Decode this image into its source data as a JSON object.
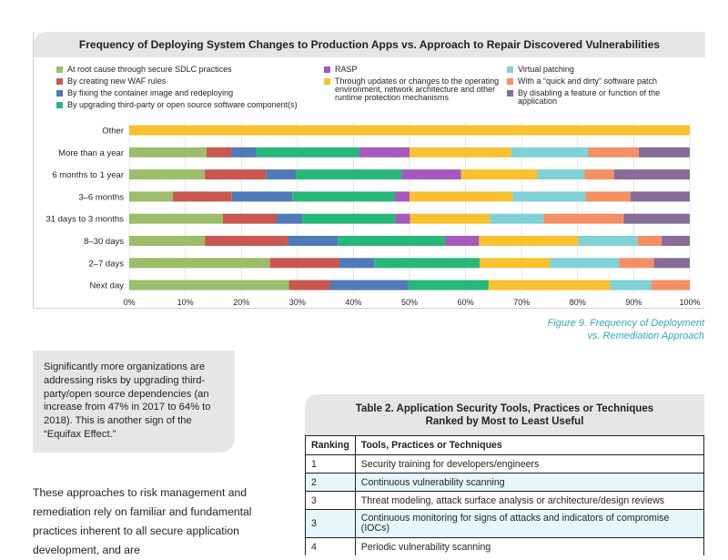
{
  "chart_data": {
    "type": "bar",
    "orientation": "horizontal",
    "stacked": true,
    "title": "Frequency of Deploying System Changes to Production Apps vs. Approach to Repair Discovered Vulnerabilities",
    "categories": [
      "Other",
      "More than a year",
      "6 months to 1 year",
      "3–6 months",
      "31 days to 3 months",
      "8–30 days",
      "2–7 days",
      "Next day"
    ],
    "xlim": [
      0,
      100
    ],
    "xticks": [
      "0%",
      "10%",
      "20%",
      "30%",
      "40%",
      "50%",
      "60%",
      "70%",
      "80%",
      "90%",
      "100%"
    ],
    "legend_placement": "top",
    "series": [
      {
        "name": "At root cause through secure SDLC practices",
        "color": "#9cbd6a",
        "values": [
          0,
          13.8,
          13.5,
          7.8,
          16.7,
          13.5,
          25.1,
          28.5
        ]
      },
      {
        "name": "By creating new WAF rules",
        "color": "#c8584f",
        "values": [
          0,
          4.4,
          10.9,
          10.5,
          9.6,
          14.8,
          12.4,
          7.3
        ]
      },
      {
        "name": "By fixing the container image and redeploying",
        "color": "#4f79b7",
        "values": [
          0,
          4.5,
          5.3,
          10.8,
          4.6,
          8.9,
          6.2,
          14.0
        ]
      },
      {
        "name": "By upgrading third-party or open source software component(s)",
        "color": "#27b779",
        "values": [
          0,
          18.3,
          18.9,
          18.3,
          16.6,
          19.2,
          18.8,
          14.3
        ]
      },
      {
        "name": "RASP",
        "color": "#a659bd",
        "values": [
          0,
          9.0,
          10.6,
          2.6,
          2.6,
          6.0,
          0,
          0
        ]
      },
      {
        "name": "Through updates or changes to the operating environment, network architecture and other runtime protection mechanisms",
        "color": "#f7c12f",
        "values": [
          0,
          18.1,
          13.6,
          18.4,
          14.2,
          17.7,
          12.6,
          21.7
        ]
      },
      {
        "name": "Virtual patching",
        "color": "#7fd1d5",
        "values": [
          0,
          13.8,
          8.4,
          13.0,
          9.6,
          10.6,
          12.3,
          7.3
        ]
      },
      {
        "name": "With a “quick and dirty” software patch",
        "color": "#f48f64",
        "values": [
          0,
          9.0,
          5.3,
          8.0,
          14.3,
          4.3,
          6.2,
          6.9
        ]
      },
      {
        "name": "By disabling a feature or function of the application",
        "color": "#876c97",
        "values": [
          0,
          9.1,
          13.5,
          10.6,
          11.8,
          5.0,
          6.4,
          0
        ]
      },
      {
        "name": "Other",
        "color": "#f7c12f",
        "values": [
          100,
          0,
          0,
          0,
          0,
          0,
          0,
          0
        ]
      }
    ]
  },
  "legend_layout": [
    {
      "col": 0,
      "row": 0
    },
    {
      "col": 0,
      "row": 1
    },
    {
      "col": 0,
      "row": 2
    },
    {
      "col": 0,
      "row": 3
    },
    {
      "col": 1,
      "row": 0
    },
    {
      "col": 1,
      "row": 1
    },
    {
      "col": 2,
      "row": 0
    },
    {
      "col": 2,
      "row": 1
    },
    {
      "col": 2,
      "row": 2
    }
  ],
  "figure_caption": "Figure 9. Frequency of Deployment\nvs. Remediation Approach",
  "callout": {
    "text": "Significantly more organizations are addressing risks by upgrading third-party/open source dependencies (an increase from 47% in 2017 to 64% to 2018). This is another sign of the “Equifax Effect.”"
  },
  "body_text": "These approaches to risk management and remediation rely on familiar and fundamental practices inherent to all secure application development, and are",
  "table": {
    "title": "Table 2. Application Security Tools, Practices or Techniques\nRanked by Most to Least Useful",
    "headers": [
      "Ranking",
      "Tools, Practices or Techniques"
    ],
    "rows": [
      {
        "rank": "1",
        "item": "Security training for developers/engineers"
      },
      {
        "rank": "2",
        "item": "Continuous vulnerability scanning"
      },
      {
        "rank": "3",
        "item": "Threat modeling, attack surface analysis or architecture/design reviews"
      },
      {
        "rank": "3",
        "item": "Continuous monitoring for signs of attacks and indicators of compromise (IOCs)"
      },
      {
        "rank": "4",
        "item": "Periodic vulnerability scanning"
      }
    ]
  }
}
